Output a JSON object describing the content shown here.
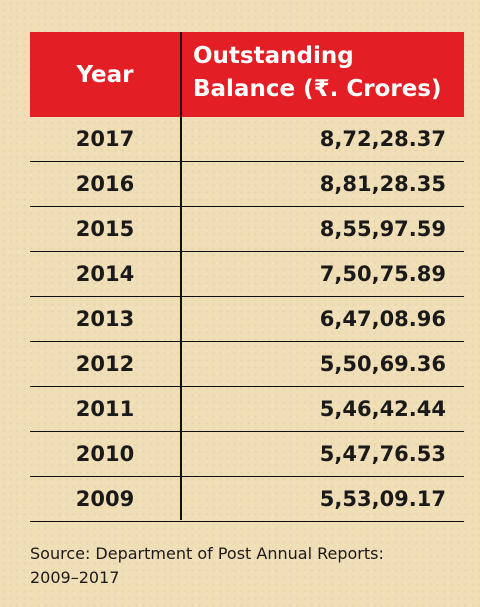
{
  "chart_data": {
    "type": "table",
    "columns": [
      "Year",
      "Outstanding Balance (₹. Crores)"
    ],
    "header": {
      "year": "Year",
      "balance_line1": "Outstanding",
      "balance_line2": "Balance (₹. Crores)"
    },
    "rows": [
      {
        "year": "2017",
        "balance": "8,72,28.37"
      },
      {
        "year": "2016",
        "balance": "8,81,28.35"
      },
      {
        "year": "2015",
        "balance": "8,55,97.59"
      },
      {
        "year": "2014",
        "balance": "7,50,75.89"
      },
      {
        "year": "2013",
        "balance": "6,47,08.96"
      },
      {
        "year": "2012",
        "balance": "5,50,69.36"
      },
      {
        "year": "2011",
        "balance": "5,46,42.44"
      },
      {
        "year": "2010",
        "balance": "5,47,76.53"
      },
      {
        "year": "2009",
        "balance": "5,53,09.17"
      }
    ]
  },
  "source": {
    "line1": "Source: Department of Post Annual Reports:",
    "line2": "2009–2017"
  },
  "colors": {
    "header_bg": "#e31e24",
    "header_text": "#ffffff",
    "background": "#f0deb6"
  }
}
